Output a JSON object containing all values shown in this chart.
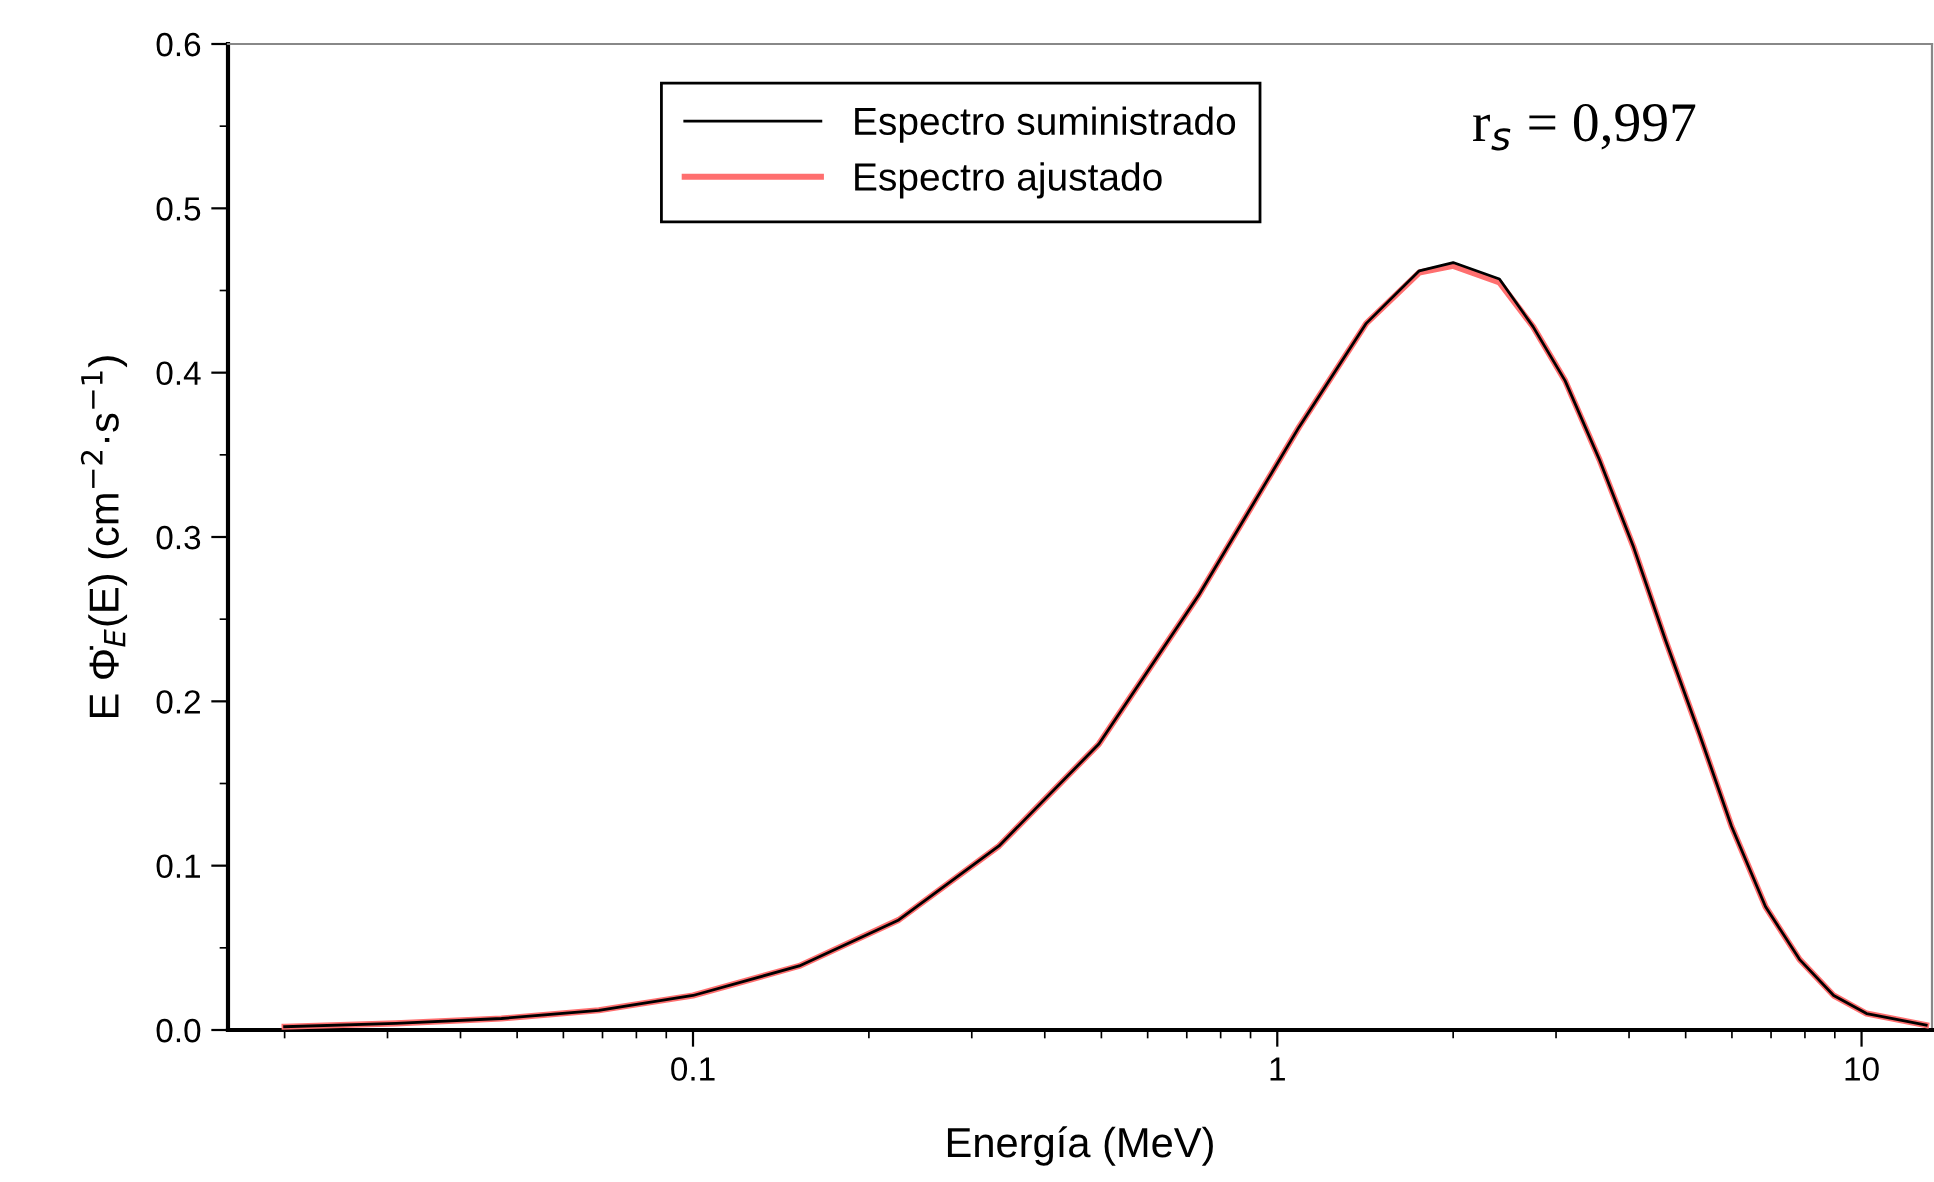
{
  "chart_data": {
    "type": "line",
    "xlabel": "Energía (MeV)",
    "ylabel": "E Φ̇$_{E}$(E) (cm$^{−2}$·s$^{−1}$)",
    "log": "x",
    "xlim": [
      0.016,
      13.2
    ],
    "xticks": [
      0.1,
      1,
      10
    ],
    "ylim": [
      0,
      0.6
    ],
    "yticks": [
      {
        "value": 0,
        "label": "0.0"
      },
      {
        "value": 0.1,
        "label": "0.1"
      },
      {
        "value": 0.2,
        "label": "0.2"
      },
      {
        "value": 0.3,
        "label": "0.3"
      },
      {
        "value": 0.4,
        "label": "0.4"
      },
      {
        "value": 0.5,
        "label": "0.5"
      },
      {
        "value": 0.6,
        "label": "0.6"
      }
    ],
    "x": [
      0.02,
      0.031,
      0.047,
      0.069,
      0.1,
      0.152,
      0.225,
      0.334,
      0.495,
      0.735,
      1.09,
      1.42,
      1.75,
      2.0,
      2.4,
      2.74,
      3.11,
      3.56,
      4.07,
      4.62,
      5.28,
      5.99,
      6.85,
      7.83,
      8.96,
      10.2,
      12.9
    ],
    "series": [
      {
        "name": "Espectro suministrado",
        "color": "#000000",
        "values": [
          0.002,
          0.004,
          0.007,
          0.012,
          0.021,
          0.039,
          0.067,
          0.112,
          0.174,
          0.265,
          0.367,
          0.43,
          0.462,
          0.467,
          0.457,
          0.428,
          0.395,
          0.347,
          0.294,
          0.237,
          0.18,
          0.124,
          0.075,
          0.043,
          0.021,
          0.01,
          0.003
        ]
      },
      {
        "name": "Espectro ajustado",
        "color": "#ff6f6f",
        "values": [
          0.002,
          0.004,
          0.007,
          0.012,
          0.021,
          0.039,
          0.067,
          0.112,
          0.174,
          0.265,
          0.367,
          0.43,
          0.461,
          0.465,
          0.455,
          0.428,
          0.395,
          0.347,
          0.294,
          0.237,
          0.18,
          0.124,
          0.075,
          0.043,
          0.021,
          0.01,
          0.003
        ]
      }
    ],
    "legend": "top",
    "grid": false,
    "annotations": [
      "r$_{s}$ = 0,997"
    ]
  }
}
